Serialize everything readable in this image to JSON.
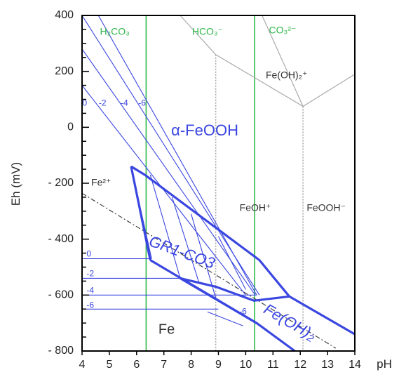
{
  "chart_data": {
    "type": "line",
    "title": "",
    "xlabel": "pH",
    "ylabel": "Eh (mV)",
    "xlim": [
      4,
      14
    ],
    "ylim": [
      -800,
      400
    ],
    "x_ticks": [
      "4",
      "5",
      "6",
      "7",
      "8",
      "9",
      "10",
      "11",
      "12",
      "13",
      "14"
    ],
    "y_ticks": [
      {
        "value": 400,
        "label": "400"
      },
      {
        "value": 200,
        "label": "200"
      },
      {
        "value": 0,
        "label": "0"
      },
      {
        "value": -200,
        "label": "- 200"
      },
      {
        "value": -400,
        "label": "- 400"
      },
      {
        "value": -600,
        "label": "- 600"
      },
      {
        "value": -800,
        "label": "- 800"
      }
    ],
    "grid": false,
    "colors": {
      "blue": "#3a46e0",
      "green": "#2fb84a",
      "gray": "#aaaaaa",
      "dark": "#333333"
    },
    "lines": [
      {
        "group": "carbonate_boundary",
        "style": "green",
        "points": [
          [
            6.35,
            400
          ],
          [
            6.35,
            -800
          ]
        ]
      },
      {
        "group": "carbonate_boundary",
        "style": "green",
        "points": [
          [
            10.33,
            400
          ],
          [
            10.33,
            -800
          ]
        ]
      },
      {
        "group": "fe_oh_boundary",
        "style": "gray",
        "points": [
          [
            8.9,
            260
          ],
          [
            8.9,
            -800
          ]
        ]
      },
      {
        "group": "fe_oh_boundary",
        "style": "gray",
        "points": [
          [
            12.1,
            75
          ],
          [
            12.1,
            -800
          ]
        ]
      },
      {
        "group": "fe_oh_boundary",
        "style": "gray_solid",
        "points": [
          [
            7.6,
            400
          ],
          [
            8.9,
            260
          ],
          [
            12.1,
            75
          ],
          [
            14,
            190
          ]
        ]
      },
      {
        "group": "fe_oh_boundary",
        "style": "gray_solid",
        "points": [
          [
            12.1,
            75
          ],
          [
            10.6,
            400
          ]
        ]
      },
      {
        "group": "water_stability",
        "style": "dashdot",
        "points": [
          [
            4,
            -236
          ],
          [
            13.3,
            -790
          ]
        ]
      },
      {
        "group": "fe2_goethite",
        "label": "0",
        "style": "blue_thin",
        "points": [
          [
            4,
            150
          ],
          [
            10.0,
            -600
          ]
        ]
      },
      {
        "group": "fe2_goethite",
        "label": "-2",
        "style": "blue_thin",
        "points": [
          [
            4,
            280
          ],
          [
            10.35,
            -600
          ]
        ]
      },
      {
        "group": "fe2_goethite",
        "label": "-4",
        "style": "blue_thin",
        "points": [
          [
            4,
            400
          ],
          [
            10.5,
            -600
          ]
        ]
      },
      {
        "group": "fe2_goethite",
        "label": "-6",
        "style": "blue_thin",
        "points": [
          [
            4.6,
            400
          ],
          [
            10.4,
            -600
          ]
        ]
      },
      {
        "group": "fe_metal",
        "label": "0",
        "style": "blue_thin",
        "points": [
          [
            4,
            -470
          ],
          [
            6.55,
            -470
          ]
        ]
      },
      {
        "group": "fe_metal",
        "label": "-2",
        "style": "blue_thin",
        "points": [
          [
            4,
            -540
          ],
          [
            7.6,
            -540
          ]
        ]
      },
      {
        "group": "fe_metal",
        "label": "-4",
        "style": "blue_thin",
        "points": [
          [
            4,
            -600
          ],
          [
            10.4,
            -600
          ]
        ]
      },
      {
        "group": "fe_metal",
        "label": "-6",
        "style": "blue_thin",
        "points": [
          [
            4,
            -650
          ],
          [
            9.0,
            -650
          ]
        ]
      },
      {
        "group": "gr_fe2",
        "style": "blue_thin",
        "points": [
          [
            5.8,
            -140
          ],
          [
            6.55,
            -470
          ]
        ]
      },
      {
        "group": "gr_fe2",
        "style": "blue_thin",
        "points": [
          [
            6.5,
            -170
          ],
          [
            7.6,
            -540
          ]
        ]
      },
      {
        "group": "gr_fe2",
        "style": "blue_thin",
        "points": [
          [
            7.3,
            -250
          ],
          [
            8.3,
            -560
          ]
        ]
      },
      {
        "group": "gr_fe2",
        "style": "blue_thin",
        "points": [
          [
            8.0,
            -310
          ],
          [
            8.9,
            -610
          ]
        ]
      },
      {
        "group": "gr_fe2",
        "style": "blue_thin",
        "points": [
          [
            9.0,
            -390
          ],
          [
            10.0,
            -580
          ]
        ]
      },
      {
        "group": "gr_fe2",
        "style": "blue_thin",
        "points": [
          [
            8.6,
            -660
          ],
          [
            9.9,
            -710
          ]
        ]
      },
      {
        "group": "gr_field",
        "style": "blue_thick",
        "points": [
          [
            5.8,
            -140
          ],
          [
            6.3,
            -170
          ],
          [
            10.5,
            -475
          ],
          [
            11.6,
            -605
          ],
          [
            14,
            -740
          ]
        ]
      },
      {
        "group": "gr_field",
        "style": "blue_thick",
        "points": [
          [
            6.5,
            -475
          ],
          [
            10.4,
            -700
          ],
          [
            11.8,
            -800
          ]
        ]
      },
      {
        "group": "gr_field",
        "style": "blue_thick",
        "points": [
          [
            7.6,
            -540
          ],
          [
            8.9,
            -570
          ],
          [
            10.3,
            -620
          ],
          [
            11.6,
            -605
          ]
        ]
      },
      {
        "group": "gr_field",
        "style": "blue_thick",
        "points": [
          [
            6.5,
            -475
          ],
          [
            5.8,
            -140
          ]
        ]
      },
      {
        "group": "gr_field",
        "style": "blue_thick",
        "points": [
          [
            7.6,
            -540
          ],
          [
            10.4,
            -700
          ]
        ]
      }
    ],
    "annotations": [
      {
        "text": "H₂CO₃",
        "x": 5.2,
        "y": 340,
        "style": "green",
        "size": 14
      },
      {
        "text": "HCO₃⁻",
        "x": 8.6,
        "y": 340,
        "style": "green",
        "size": 14
      },
      {
        "text": "CO₃²⁻",
        "x": 11.35,
        "y": 345,
        "style": "green",
        "size": 14
      },
      {
        "text": "Fe(OH)₂⁺",
        "x": 11.5,
        "y": 185,
        "style": "dark",
        "size": 14
      },
      {
        "text": "α-FeOOH",
        "x": 8.5,
        "y": -15,
        "style": "blue",
        "size": 22
      },
      {
        "text": "Fe²⁺",
        "x": 4.7,
        "y": -200,
        "style": "dark",
        "size": 14
      },
      {
        "text": "FeOH⁺",
        "x": 10.35,
        "y": -290,
        "style": "dark",
        "size": 14
      },
      {
        "text": "FeOOH⁻",
        "x": 12.95,
        "y": -290,
        "style": "dark",
        "size": 14
      },
      {
        "text": "GR1-CO3",
        "x": 7.65,
        "y": -450,
        "style": "blue_italic",
        "size": 22,
        "rotate": 20
      },
      {
        "text": "Fe(OH)₂",
        "x": 11.6,
        "y": -700,
        "style": "blue_italic",
        "size": 22,
        "rotate": 30
      },
      {
        "text": "Fe",
        "x": 7.1,
        "y": -725,
        "style": "dark",
        "size": 20
      },
      {
        "text": "0",
        "x": 4.1,
        "y": 85,
        "style": "blue",
        "size": 12
      },
      {
        "text": "-2",
        "x": 4.75,
        "y": 85,
        "style": "blue",
        "size": 12
      },
      {
        "text": "-4",
        "x": 5.55,
        "y": 85,
        "style": "blue",
        "size": 12
      },
      {
        "text": "-6",
        "x": 6.2,
        "y": 85,
        "style": "blue",
        "size": 12
      },
      {
        "text": "0",
        "x": 4.25,
        "y": -455,
        "style": "blue",
        "size": 12
      },
      {
        "text": "-2",
        "x": 4.3,
        "y": -525,
        "style": "blue",
        "size": 12
      },
      {
        "text": "-4",
        "x": 4.3,
        "y": -585,
        "style": "blue",
        "size": 12
      },
      {
        "text": "-6",
        "x": 4.3,
        "y": -638,
        "style": "blue",
        "size": 12
      },
      {
        "text": "-6",
        "x": 9.9,
        "y": -660,
        "style": "blue",
        "size": 12
      }
    ]
  }
}
